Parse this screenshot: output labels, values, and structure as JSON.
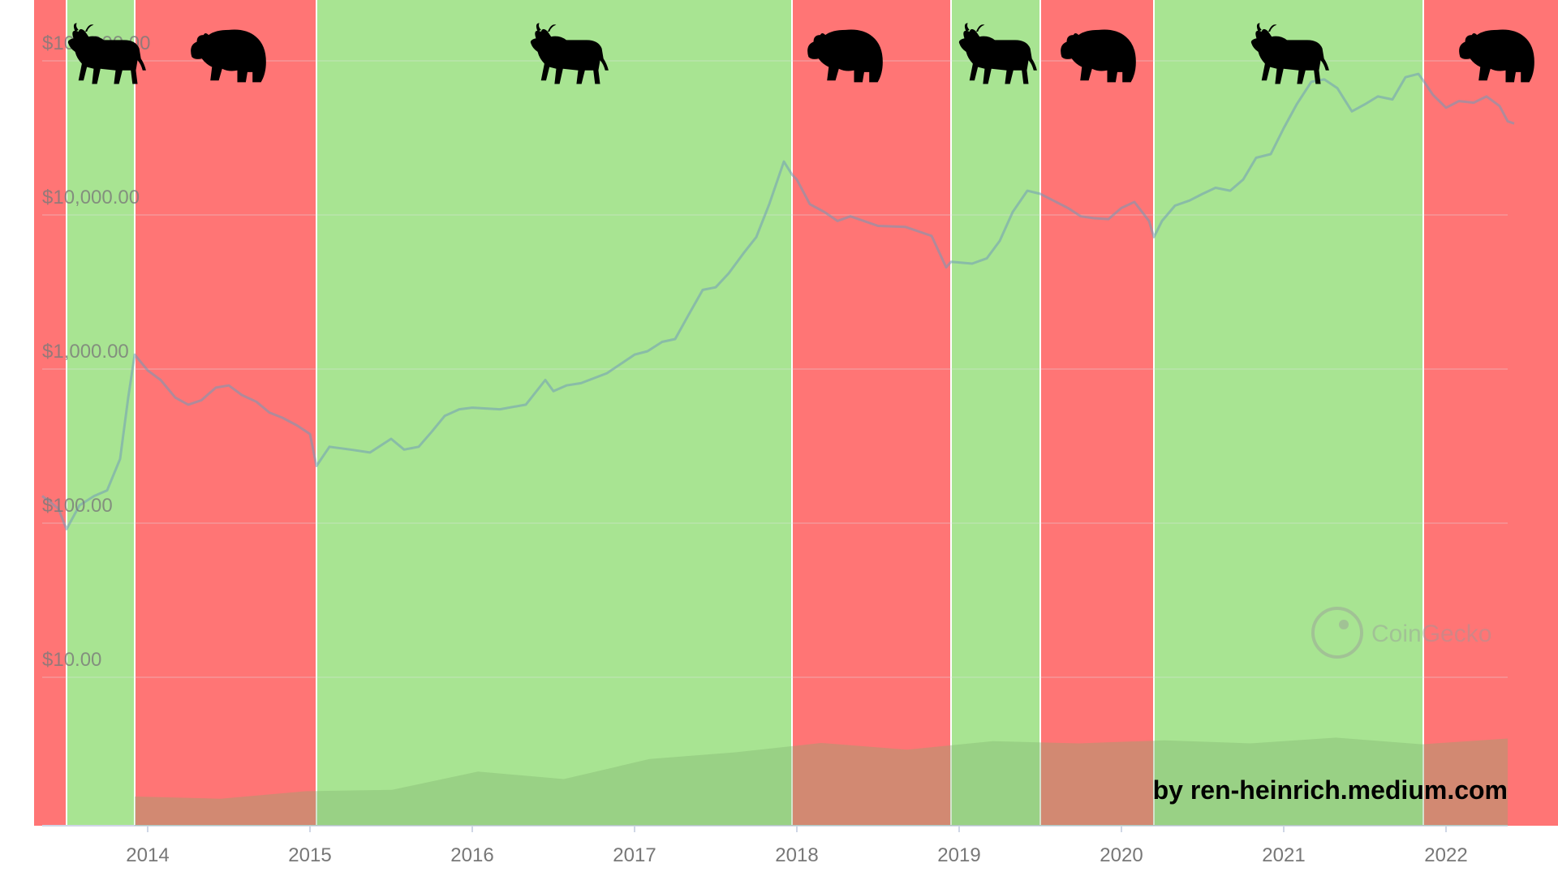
{
  "chart_data": {
    "type": "line",
    "title": "",
    "xlabel": "",
    "ylabel": "",
    "y_scale": "log",
    "ylim": [
      5,
      100000
    ],
    "xlim": [
      2013.3,
      2022.45
    ],
    "y_ticks": [
      {
        "value": 10,
        "label": "$10.00"
      },
      {
        "value": 100,
        "label": "$100.00"
      },
      {
        "value": 1000,
        "label": "$1,000.00"
      },
      {
        "value": 10000,
        "label": "$10,000.00"
      },
      {
        "value": 100000,
        "label": "$100,000.00"
      }
    ],
    "x_ticks": [
      {
        "value": 2014,
        "label": "2014"
      },
      {
        "value": 2015,
        "label": "2015"
      },
      {
        "value": 2016,
        "label": "2016"
      },
      {
        "value": 2017,
        "label": "2017"
      },
      {
        "value": 2018,
        "label": "2018"
      },
      {
        "value": 2019,
        "label": "2019"
      },
      {
        "value": 2020,
        "label": "2020"
      },
      {
        "value": 2021,
        "label": "2021"
      },
      {
        "value": 2022,
        "label": "2022"
      }
    ],
    "grid": true,
    "market_phases": [
      {
        "phase": "bear",
        "start": 2013.3,
        "end": 2013.5,
        "icon": "bear-icon",
        "show_icon": false
      },
      {
        "phase": "bull",
        "start": 2013.5,
        "end": 2013.92,
        "icon": "bull-icon",
        "show_icon": true
      },
      {
        "phase": "bear",
        "start": 2013.92,
        "end": 2015.04,
        "icon": "bear-icon",
        "show_icon": true
      },
      {
        "phase": "bull",
        "start": 2015.04,
        "end": 2017.97,
        "icon": "bull-icon",
        "show_icon": true
      },
      {
        "phase": "bear",
        "start": 2017.97,
        "end": 2018.95,
        "icon": "bear-icon",
        "show_icon": true
      },
      {
        "phase": "bull",
        "start": 2018.95,
        "end": 2019.5,
        "icon": "bull-icon",
        "show_icon": true
      },
      {
        "phase": "bear",
        "start": 2019.5,
        "end": 2020.2,
        "icon": "bear-icon",
        "show_icon": true
      },
      {
        "phase": "bull",
        "start": 2020.2,
        "end": 2021.86,
        "icon": "bull-icon",
        "show_icon": true
      },
      {
        "phase": "bear",
        "start": 2021.86,
        "end": 2022.45,
        "icon": "bear-icon",
        "show_icon": true
      }
    ],
    "series": [
      {
        "x": [
          2013.3,
          2013.4,
          2013.45,
          2013.5,
          2013.58,
          2013.67,
          2013.75,
          2013.83,
          2013.88,
          2013.92,
          2014.0,
          2014.08,
          2014.17,
          2014.25,
          2014.33,
          2014.42,
          2014.5,
          2014.58,
          2014.67,
          2014.75,
          2014.83,
          2014.92,
          2015.0,
          2015.04,
          2015.12,
          2015.25,
          2015.37,
          2015.5,
          2015.58,
          2015.67,
          2015.75,
          2015.83,
          2015.92,
          2016.0,
          2016.17,
          2016.33,
          2016.45,
          2016.5,
          2016.58,
          2016.67,
          2016.83,
          2017.0,
          2017.08,
          2017.17,
          2017.25,
          2017.33,
          2017.42,
          2017.5,
          2017.58,
          2017.67,
          2017.75,
          2017.83,
          2017.92,
          2017.97,
          2018.0,
          2018.08,
          2018.17,
          2018.25,
          2018.33,
          2018.5,
          2018.67,
          2018.83,
          2018.92,
          2018.95,
          2019.08,
          2019.17,
          2019.25,
          2019.33,
          2019.42,
          2019.5,
          2019.58,
          2019.67,
          2019.75,
          2019.83,
          2019.92,
          2020.0,
          2020.08,
          2020.17,
          2020.2,
          2020.25,
          2020.33,
          2020.42,
          2020.5,
          2020.58,
          2020.67,
          2020.75,
          2020.83,
          2020.92,
          2021.0,
          2021.08,
          2021.17,
          2021.25,
          2021.33,
          2021.42,
          2021.5,
          2021.58,
          2021.67,
          2021.75,
          2021.83,
          2021.86,
          2021.92,
          2022.0,
          2022.08,
          2022.17,
          2022.25,
          2022.33,
          2022.38,
          2022.42
        ],
        "values": [
          115,
          105,
          95,
          70,
          100,
          115,
          125,
          200,
          500,
          950,
          750,
          650,
          500,
          450,
          480,
          580,
          600,
          520,
          470,
          400,
          370,
          330,
          290,
          180,
          240,
          230,
          220,
          270,
          230,
          240,
          300,
          380,
          420,
          430,
          420,
          450,
          650,
          550,
          600,
          620,
          720,
          950,
          1000,
          1150,
          1200,
          1700,
          2500,
          2600,
          3200,
          4300,
          5500,
          9000,
          17000,
          14000,
          13000,
          9000,
          8000,
          7000,
          7500,
          6500,
          6400,
          5600,
          3500,
          3800,
          3700,
          4000,
          5200,
          8000,
          11000,
          10500,
          9500,
          8500,
          7500,
          7300,
          7200,
          8500,
          9300,
          7000,
          5500,
          7000,
          8800,
          9500,
          10500,
          11500,
          11000,
          13000,
          18000,
          19000,
          28000,
          40000,
          56000,
          58000,
          51000,
          36000,
          40000,
          45000,
          43000,
          60000,
          63000,
          57000,
          46000,
          38000,
          42000,
          41000,
          45000,
          39000,
          31000,
          30000
        ],
        "color": "#6f9bb8"
      }
    ],
    "volume": {
      "x_start": 2013.92,
      "x_end": 2022.45,
      "values": [
        0.3,
        0.33,
        0.36,
        0.43,
        0.58,
        0.55,
        0.72,
        0.85,
        0.9,
        0.88,
        0.92,
        0.95,
        0.93,
        0.95,
        0.96,
        0.94,
        0.95
      ]
    },
    "watermark": "CoinGecko",
    "credit": "by ren-heinrich.medium.com",
    "colors": {
      "bull": "#a8e492",
      "bear": "#ff7575",
      "line": "#6f9bb8",
      "volume": "#7eb06e",
      "grid": "#e3e6ee",
      "axis": "#cfd6e6"
    }
  }
}
